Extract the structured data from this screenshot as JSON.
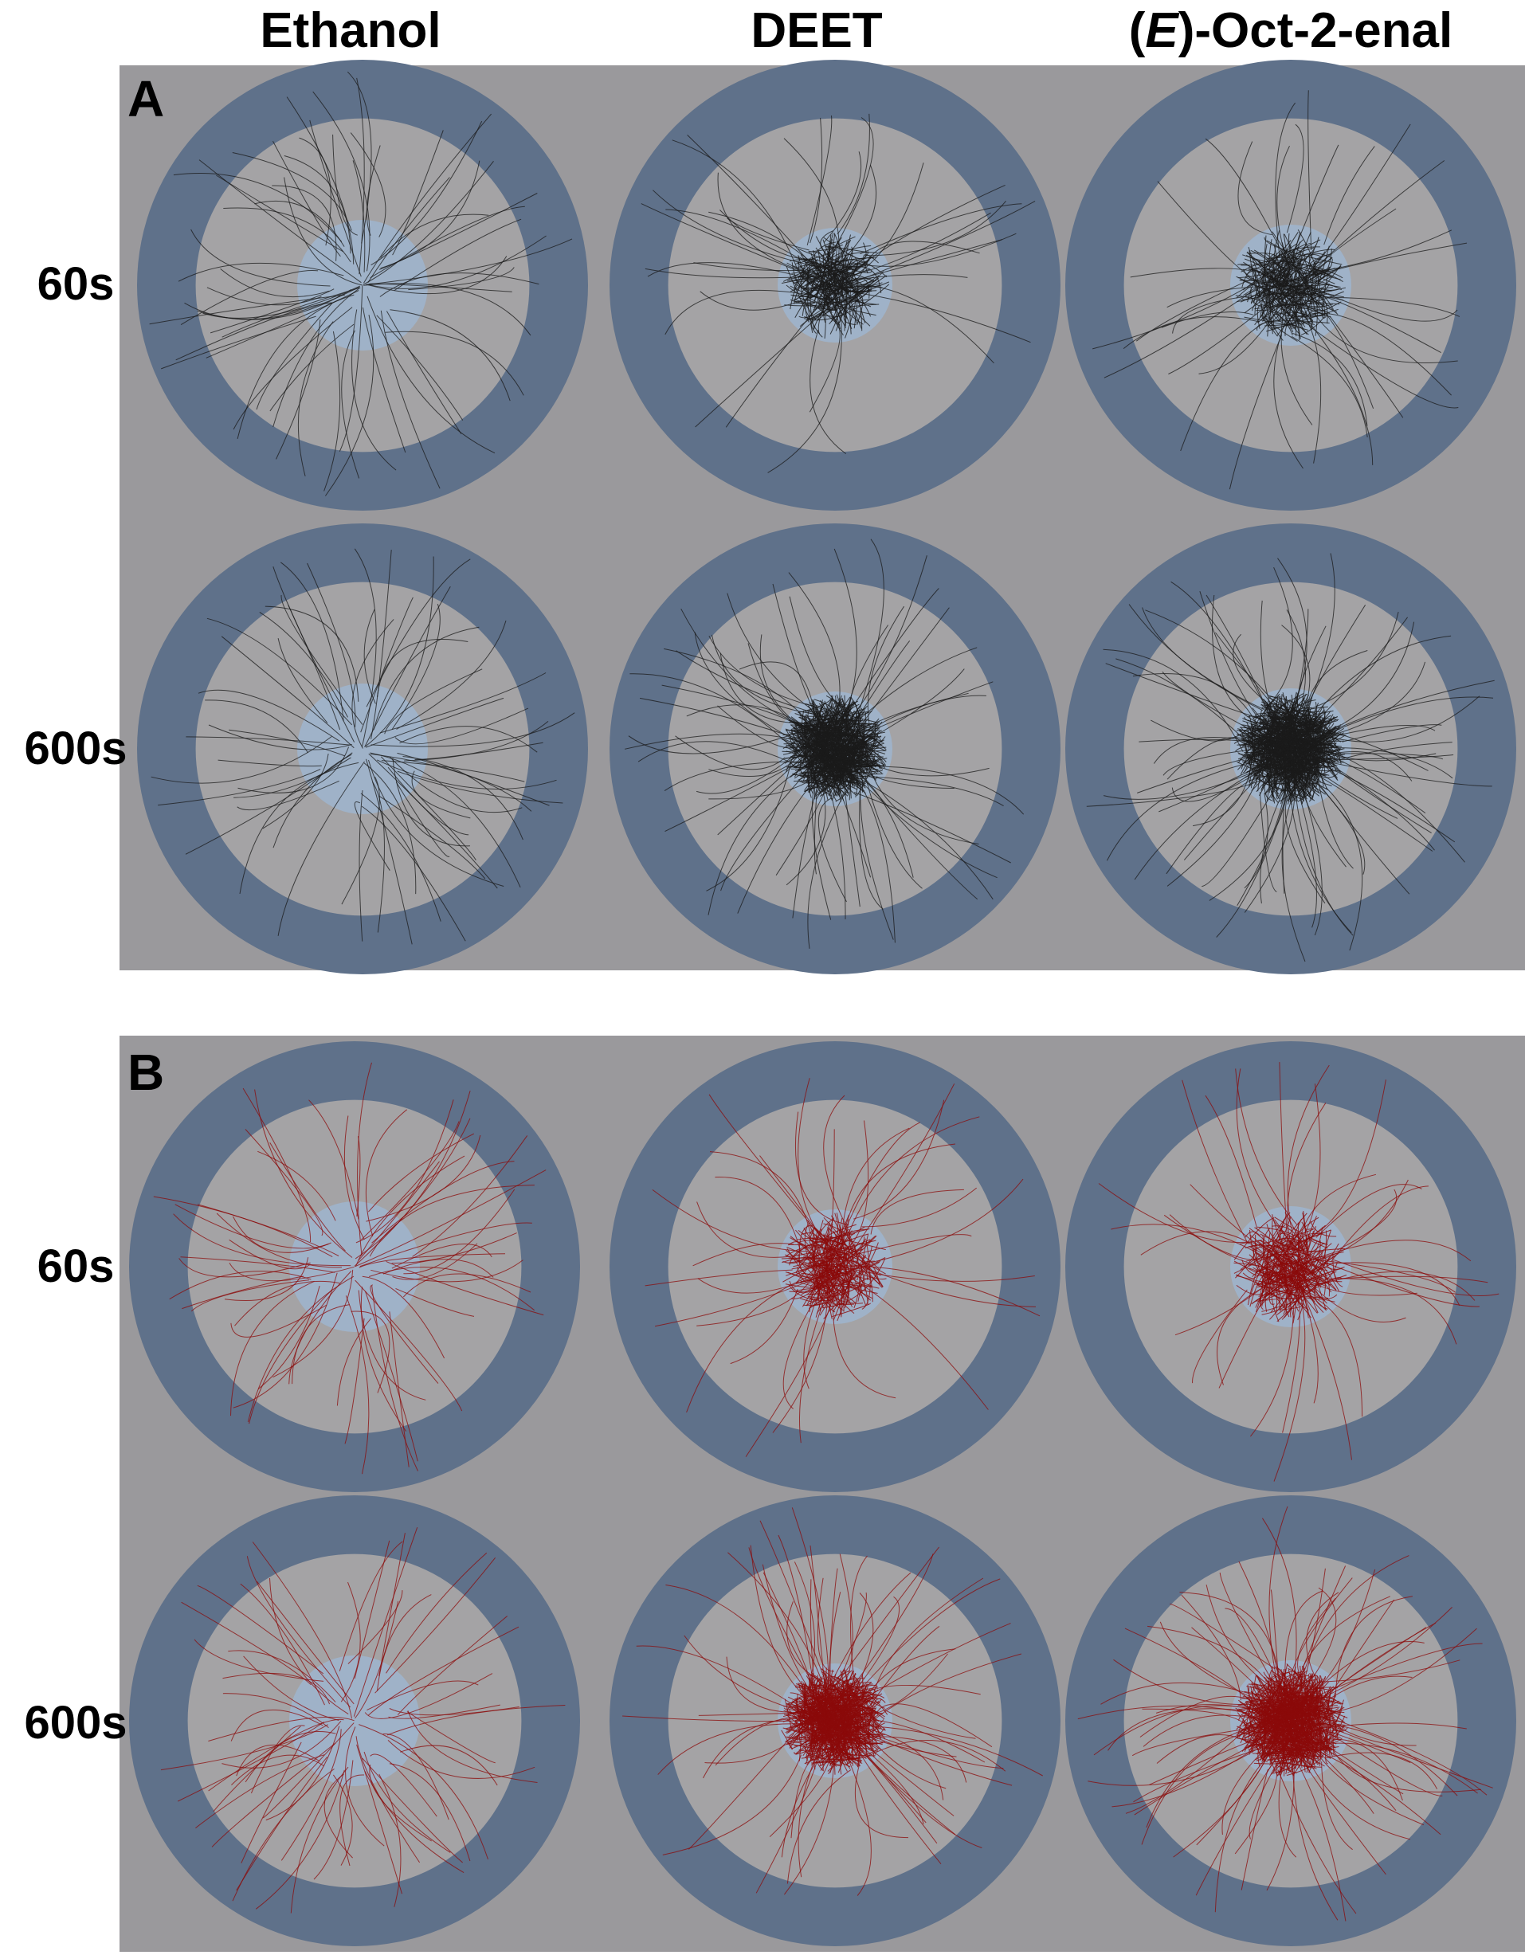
{
  "columns": [
    {
      "name": "Ethanol"
    },
    {
      "name_paren_open": "(",
      "name_italic": "E",
      "name_rest": ")-Oct-2-enal"
    }
  ],
  "column_deet": "DEET",
  "panels": [
    {
      "letter": "A",
      "trace_color": "#1a1a1a",
      "row_labels": [
        "60s",
        "600s"
      ]
    },
    {
      "letter": "B",
      "trace_color": "#8b0a0a",
      "row_labels": [
        "60s",
        "600s"
      ]
    }
  ],
  "colors": {
    "panel_bg": "#9a999c",
    "outer_ring": "#5f718a",
    "inner_arena": "#a4a3a5",
    "release_zone": "#9fb2c8"
  }
}
